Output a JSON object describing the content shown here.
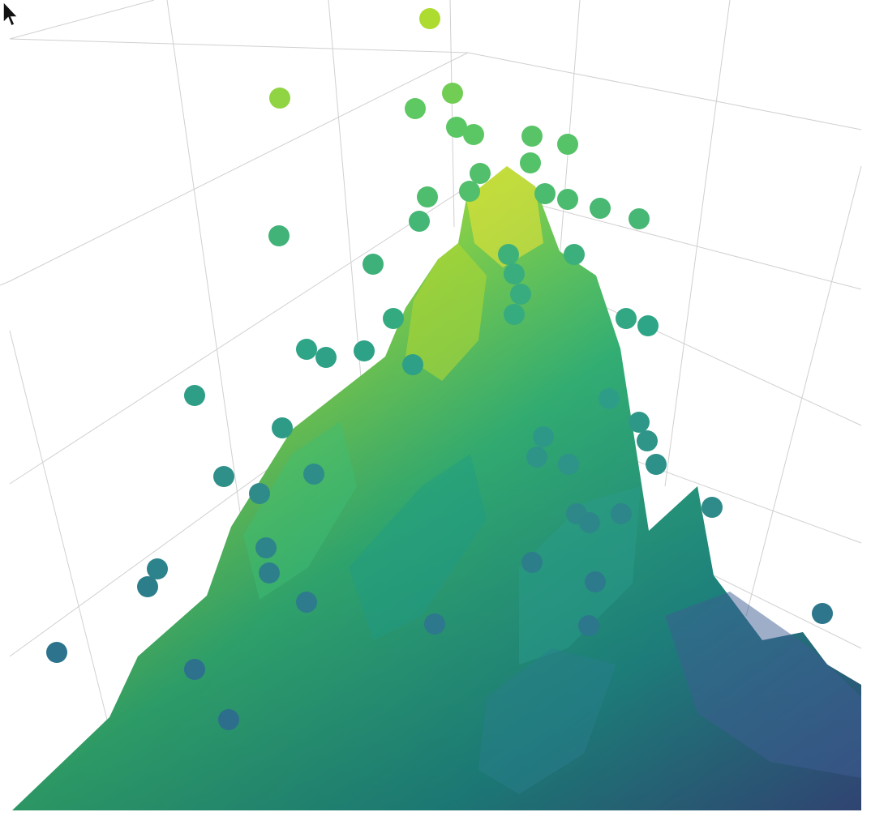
{
  "chart_data": {
    "type": "surface-3d-with-scatter",
    "colorscale": "viridis",
    "colors": {
      "grid": "#d0d0d0",
      "surface_high": "#fde725",
      "surface_low": "#3b528b",
      "point_high": "#c2df23",
      "point_low": "#2d6a8e"
    },
    "grid": true,
    "legend": "none",
    "title": "",
    "xlabel": "",
    "ylabel": "",
    "zlabel": "",
    "z_range": [
      0,
      1
    ],
    "surface": {
      "x": [
        -1.0,
        -0.5,
        0.0,
        0.5,
        1.0
      ],
      "y": [
        -1.0,
        -0.5,
        0.0,
        0.5,
        1.0
      ],
      "z": [
        [
          0.1,
          0.22,
          0.35,
          0.2,
          0.08
        ],
        [
          0.2,
          0.45,
          0.72,
          0.4,
          0.18
        ],
        [
          0.32,
          0.7,
          1.0,
          0.62,
          0.28
        ],
        [
          0.22,
          0.48,
          0.8,
          0.46,
          0.2
        ],
        [
          0.12,
          0.26,
          0.44,
          0.24,
          0.1
        ]
      ]
    },
    "scatter": {
      "z_values": [
        0.98,
        0.95,
        0.92,
        0.9,
        0.88,
        0.88,
        0.86,
        0.85,
        0.84,
        0.82,
        0.82,
        0.8,
        0.78,
        0.78,
        0.76,
        0.75,
        0.74,
        0.72,
        0.7,
        0.7,
        0.68,
        0.67,
        0.66,
        0.65,
        0.64,
        0.62,
        0.6,
        0.6,
        0.58,
        0.57,
        0.56,
        0.55,
        0.54,
        0.52,
        0.5,
        0.5,
        0.48,
        0.47,
        0.46,
        0.45,
        0.44,
        0.42,
        0.4,
        0.4,
        0.38,
        0.37,
        0.36,
        0.35,
        0.34,
        0.32,
        0.3,
        0.3,
        0.28,
        0.27,
        0.26,
        0.25,
        0.24,
        0.22,
        0.2,
        0.18
      ]
    }
  }
}
